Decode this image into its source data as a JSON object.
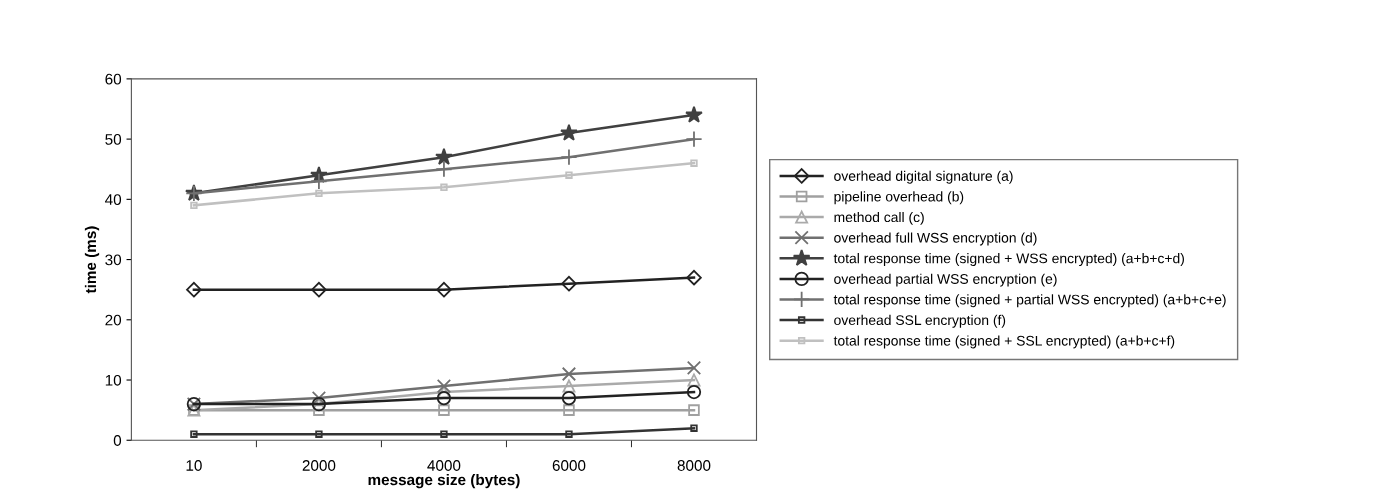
{
  "chart_data": {
    "type": "line",
    "xlabel": "message size (bytes)",
    "ylabel": "time (ms)",
    "categories": [
      "10",
      "2000",
      "4000",
      "6000",
      "8000"
    ],
    "ylim": [
      0,
      60
    ],
    "yticks": [
      0,
      10,
      20,
      30,
      40,
      50,
      60
    ],
    "grid": false,
    "legend": "right",
    "series": [
      {
        "name": "overhead digital signature (a)",
        "color": "#222222",
        "marker": "diamond",
        "values": [
          25,
          25,
          25,
          26,
          27
        ]
      },
      {
        "name": "pipeline overhead (b)",
        "color": "#a0a0a0",
        "marker": "square",
        "values": [
          5,
          5,
          5,
          5,
          5
        ]
      },
      {
        "name": "method call (c)",
        "color": "#aaaaaa",
        "marker": "triangle",
        "values": [
          5,
          6,
          8,
          9,
          10
        ]
      },
      {
        "name": "overhead full WSS encryption (d)",
        "color": "#707070",
        "marker": "cross",
        "values": [
          6,
          7,
          9,
          11,
          12
        ]
      },
      {
        "name": "total response time (signed + WSS encrypted) (a+b+c+d)",
        "color": "#404040",
        "marker": "star",
        "values": [
          41,
          44,
          47,
          51,
          54
        ]
      },
      {
        "name": "overhead partial WSS encryption (e)",
        "color": "#222222",
        "marker": "circle",
        "values": [
          6,
          6,
          7,
          7,
          8
        ]
      },
      {
        "name": "total response time (signed + partial WSS encrypted) (a+b+c+e)",
        "color": "#707070",
        "marker": "plus",
        "values": [
          41,
          43,
          45,
          47,
          50
        ]
      },
      {
        "name": "overhead SSL encryption (f)",
        "color": "#333333",
        "marker": "square",
        "values": [
          1,
          1,
          1,
          1,
          2
        ]
      },
      {
        "name": "total response time (signed + SSL encrypted) (a+b+c+f)",
        "color": "#c0c0c0",
        "marker": "square",
        "values": [
          39,
          41,
          42,
          44,
          46
        ]
      }
    ]
  }
}
